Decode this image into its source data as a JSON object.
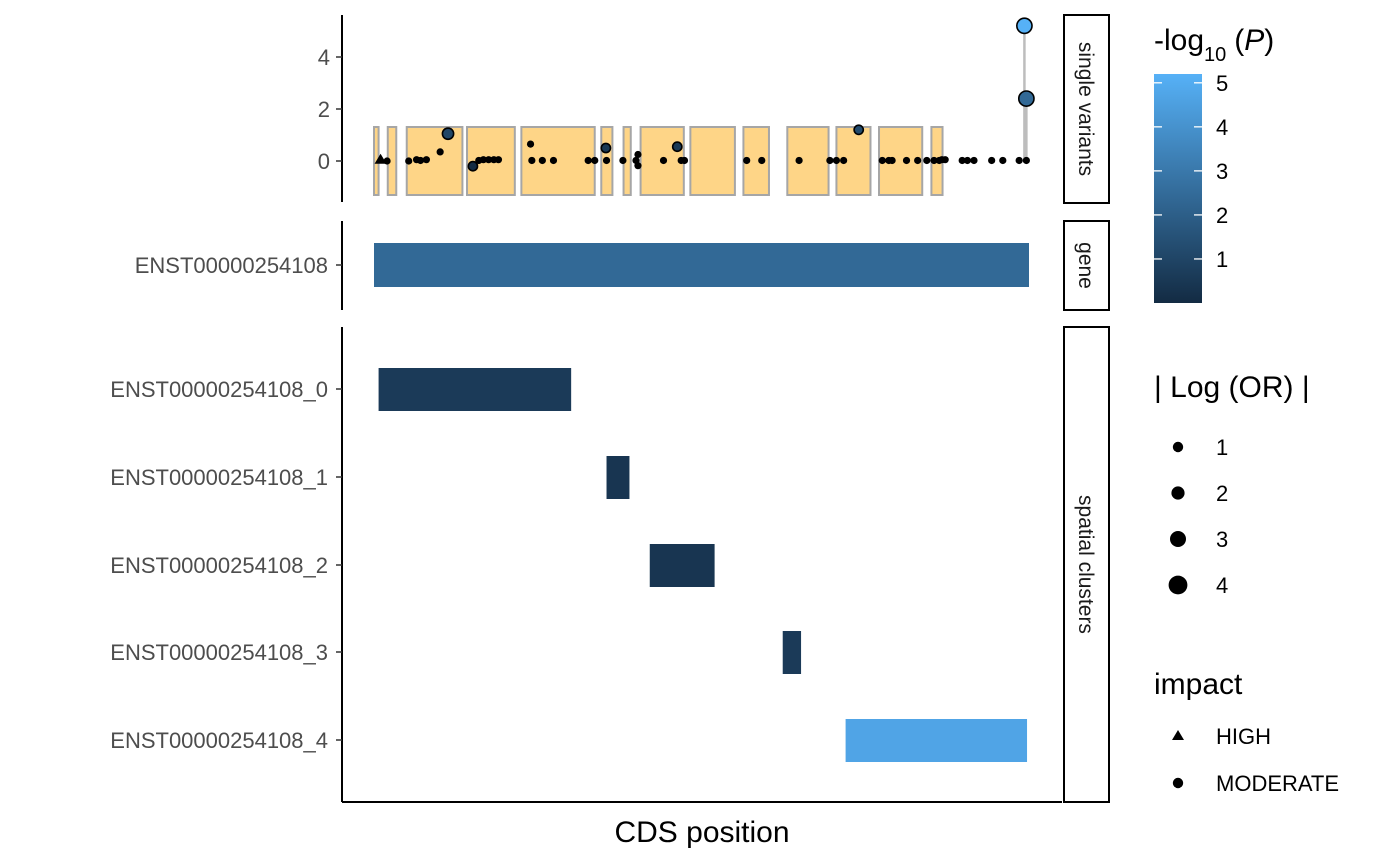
{
  "chart_data": {
    "type": "composite",
    "xlabel": "CDS position",
    "panels": {
      "single_variants": {
        "strip": "single variants",
        "y_ticks": [
          0,
          2,
          4
        ],
        "ylim": [
          -1.6,
          5.6
        ],
        "exons": [
          [
            0.0,
            0.007
          ],
          [
            0.021,
            0.034
          ],
          [
            0.05,
            0.135
          ],
          [
            0.142,
            0.215
          ],
          [
            0.225,
            0.337
          ],
          [
            0.347,
            0.364
          ],
          [
            0.381,
            0.392
          ],
          [
            0.407,
            0.473
          ],
          [
            0.483,
            0.551
          ],
          [
            0.564,
            0.603
          ],
          [
            0.631,
            0.694
          ],
          [
            0.706,
            0.758
          ],
          [
            0.771,
            0.837
          ],
          [
            0.851,
            0.868
          ]
        ],
        "variants": [
          {
            "x": 0.01,
            "y": 0.05,
            "size": 1,
            "impact": "HIGH"
          },
          {
            "x": 0.02,
            "y": 0.0,
            "size": 1,
            "impact": "MODERATE"
          },
          {
            "x": 0.053,
            "y": 0.0,
            "size": 1,
            "impact": "MODERATE"
          },
          {
            "x": 0.065,
            "y": 0.05,
            "size": 1,
            "impact": "MODERATE"
          },
          {
            "x": 0.071,
            "y": 0.02,
            "size": 1,
            "impact": "MODERATE"
          },
          {
            "x": 0.08,
            "y": 0.05,
            "size": 1,
            "impact": "MODERATE"
          },
          {
            "x": 0.101,
            "y": 0.35,
            "size": 1,
            "impact": "MODERATE"
          },
          {
            "x": 0.113,
            "y": 1.05,
            "size": 3,
            "impact": "MODERATE"
          },
          {
            "x": 0.151,
            "y": -0.2,
            "size": 2,
            "impact": "MODERATE"
          },
          {
            "x": 0.16,
            "y": 0.02,
            "size": 1,
            "impact": "MODERATE"
          },
          {
            "x": 0.167,
            "y": 0.05,
            "size": 1,
            "impact": "MODERATE"
          },
          {
            "x": 0.175,
            "y": 0.05,
            "size": 1,
            "impact": "MODERATE"
          },
          {
            "x": 0.183,
            "y": 0.05,
            "size": 1,
            "impact": "MODERATE"
          },
          {
            "x": 0.19,
            "y": 0.05,
            "size": 1,
            "impact": "MODERATE"
          },
          {
            "x": 0.239,
            "y": 0.65,
            "size": 1,
            "impact": "MODERATE"
          },
          {
            "x": 0.241,
            "y": 0.02,
            "size": 1,
            "impact": "MODERATE"
          },
          {
            "x": 0.257,
            "y": 0.02,
            "size": 1,
            "impact": "MODERATE"
          },
          {
            "x": 0.274,
            "y": 0.02,
            "size": 1,
            "impact": "MODERATE"
          },
          {
            "x": 0.327,
            "y": 0.02,
            "size": 1,
            "impact": "MODERATE"
          },
          {
            "x": 0.337,
            "y": 0.02,
            "size": 1,
            "impact": "MODERATE"
          },
          {
            "x": 0.354,
            "y": 0.5,
            "size": 2,
            "impact": "MODERATE"
          },
          {
            "x": 0.355,
            "y": 0.02,
            "size": 1,
            "impact": "MODERATE"
          },
          {
            "x": 0.38,
            "y": 0.02,
            "size": 1,
            "impact": "MODERATE"
          },
          {
            "x": 0.4,
            "y": 0.02,
            "size": 1,
            "impact": "MODERATE"
          },
          {
            "x": 0.403,
            "y": 0.25,
            "size": 1,
            "impact": "MODERATE"
          },
          {
            "x": 0.403,
            "y": -0.18,
            "size": 1,
            "impact": "MODERATE"
          },
          {
            "x": 0.442,
            "y": 0.02,
            "size": 1,
            "impact": "MODERATE"
          },
          {
            "x": 0.463,
            "y": 0.55,
            "size": 2,
            "impact": "MODERATE"
          },
          {
            "x": 0.469,
            "y": 0.02,
            "size": 1,
            "impact": "MODERATE"
          },
          {
            "x": 0.474,
            "y": 0.02,
            "size": 1,
            "impact": "MODERATE"
          },
          {
            "x": 0.569,
            "y": 0.02,
            "size": 1,
            "impact": "MODERATE"
          },
          {
            "x": 0.592,
            "y": 0.02,
            "size": 1,
            "impact": "MODERATE"
          },
          {
            "x": 0.649,
            "y": 0.02,
            "size": 1,
            "impact": "MODERATE"
          },
          {
            "x": 0.696,
            "y": 0.02,
            "size": 1,
            "impact": "MODERATE"
          },
          {
            "x": 0.706,
            "y": 0.02,
            "size": 1,
            "impact": "MODERATE"
          },
          {
            "x": 0.717,
            "y": 0.02,
            "size": 1,
            "impact": "MODERATE"
          },
          {
            "x": 0.74,
            "y": 1.2,
            "size": 2,
            "impact": "MODERATE"
          },
          {
            "x": 0.776,
            "y": 0.02,
            "size": 1,
            "impact": "MODERATE"
          },
          {
            "x": 0.786,
            "y": 0.02,
            "size": 1,
            "impact": "MODERATE"
          },
          {
            "x": 0.791,
            "y": 0.02,
            "size": 1,
            "impact": "MODERATE"
          },
          {
            "x": 0.813,
            "y": 0.02,
            "size": 1,
            "impact": "MODERATE"
          },
          {
            "x": 0.83,
            "y": 0.02,
            "size": 1,
            "impact": "MODERATE"
          },
          {
            "x": 0.844,
            "y": 0.02,
            "size": 1,
            "impact": "MODERATE"
          },
          {
            "x": 0.855,
            "y": 0.02,
            "size": 1,
            "impact": "MODERATE"
          },
          {
            "x": 0.863,
            "y": 0.02,
            "size": 1,
            "impact": "MODERATE"
          },
          {
            "x": 0.867,
            "y": 0.05,
            "size": 1,
            "impact": "MODERATE"
          },
          {
            "x": 0.872,
            "y": 0.05,
            "size": 1,
            "impact": "MODERATE"
          },
          {
            "x": 0.898,
            "y": 0.02,
            "size": 1,
            "impact": "MODERATE"
          },
          {
            "x": 0.906,
            "y": 0.02,
            "size": 1,
            "impact": "MODERATE"
          },
          {
            "x": 0.916,
            "y": 0.02,
            "size": 1,
            "impact": "MODERATE"
          },
          {
            "x": 0.943,
            "y": 0.02,
            "size": 1,
            "impact": "MODERATE"
          },
          {
            "x": 0.96,
            "y": 0.02,
            "size": 1,
            "impact": "MODERATE"
          },
          {
            "x": 0.985,
            "y": 0.02,
            "size": 1,
            "impact": "MODERATE"
          },
          {
            "x": 0.996,
            "y": 0.02,
            "size": 1,
            "impact": "MODERATE"
          }
        ],
        "lollipops": [
          {
            "x": 0.993,
            "y": 5.2,
            "size": 4,
            "impact": "MODERATE"
          },
          {
            "x": 0.996,
            "y": 2.4,
            "size": 4,
            "impact": "MODERATE"
          }
        ]
      },
      "gene": {
        "strip": "gene",
        "bars": [
          {
            "label": "ENST00000254108",
            "start": 0.0,
            "end": 1.0,
            "neglog10p": 2.4
          }
        ]
      },
      "spatial_clusters": {
        "strip": "spatial clusters",
        "bars": [
          {
            "label": "ENST00000254108_0",
            "start": 0.007,
            "end": 0.301,
            "neglog10p": 0.6
          },
          {
            "label": "ENST00000254108_1",
            "start": 0.355,
            "end": 0.39,
            "neglog10p": 0.4
          },
          {
            "label": "ENST00000254108_2",
            "start": 0.421,
            "end": 0.52,
            "neglog10p": 0.4
          },
          {
            "label": "ENST00000254108_3",
            "start": 0.624,
            "end": 0.652,
            "neglog10p": 0.6
          },
          {
            "label": "ENST00000254108_4",
            "start": 0.72,
            "end": 0.997,
            "neglog10p": 4.7
          }
        ]
      }
    },
    "color_scale": {
      "title_main": "-log",
      "title_sub": "10",
      "title_arg": "P",
      "low": "#132B43",
      "high": "#56B1F7",
      "range": [
        0,
        5.2
      ],
      "ticks": [
        1,
        2,
        3,
        4,
        5
      ]
    },
    "size_legend": {
      "title": "| Log (OR) |",
      "values": [
        1,
        2,
        3,
        4
      ]
    },
    "shape_legend": {
      "title": "impact",
      "values": [
        "HIGH",
        "MODERATE"
      ]
    },
    "colors": {
      "exon_fill": "#FED587",
      "exon_stroke": "#A6A6A6",
      "point": "#000000"
    }
  }
}
